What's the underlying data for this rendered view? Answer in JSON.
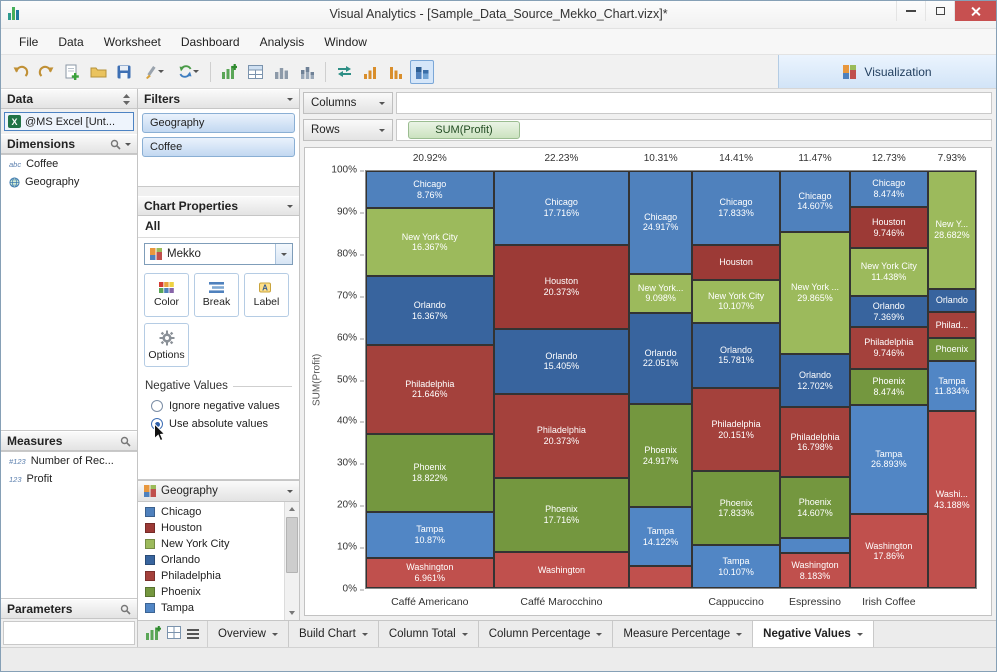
{
  "window": {
    "title": "Visual Analytics - [Sample_Data_Source_Mekko_Chart.vizx]*"
  },
  "menu": {
    "items": [
      "File",
      "Data",
      "Worksheet",
      "Dashboard",
      "Analysis",
      "Window"
    ]
  },
  "toolbar": {
    "visualization_label": "Visualization"
  },
  "data_panel": {
    "header": "Data",
    "source": "@MS Excel [Unt...",
    "dimensions": {
      "header": "Dimensions",
      "items": [
        {
          "icon": "abc-icon",
          "icon_text": "abc",
          "label": "Coffee"
        },
        {
          "icon": "globe-icon",
          "icon_text": "",
          "label": "Geography"
        }
      ]
    },
    "measures": {
      "header": "Measures",
      "items": [
        {
          "icon": "count-icon",
          "icon_text": "#123",
          "label": "Number of Rec..."
        },
        {
          "icon": "number-icon",
          "icon_text": "123",
          "label": "Profit"
        }
      ]
    },
    "parameters": {
      "header": "Parameters"
    }
  },
  "filters": {
    "header": "Filters",
    "pills": [
      "Geography",
      "Coffee"
    ]
  },
  "chart_properties": {
    "header": "Chart Properties",
    "scope": "All",
    "chart_type": "Mekko",
    "buttons": [
      {
        "label": "Color"
      },
      {
        "label": "Break"
      },
      {
        "label": "Label"
      }
    ],
    "options_label": "Options",
    "negative_values": {
      "title": "Negative Values",
      "options": [
        {
          "label": "Ignore negative values",
          "selected": false
        },
        {
          "label": "Use absolute values",
          "selected": true
        }
      ]
    }
  },
  "legend": {
    "header": "Geography",
    "items": [
      {
        "label": "Chicago",
        "color": "#4f81bd"
      },
      {
        "label": "Houston",
        "color": "#9c3a36"
      },
      {
        "label": "New York City",
        "color": "#9cba5c"
      },
      {
        "label": "Orlando",
        "color": "#38649e"
      },
      {
        "label": "Philadelphia",
        "color": "#a4413c"
      },
      {
        "label": "Phoenix",
        "color": "#74973f"
      },
      {
        "label": "Tampa",
        "color": "#5186c5"
      }
    ]
  },
  "shelves": {
    "columns_label": "Columns",
    "rows_label": "Rows",
    "rows_pill": "SUM(Profit)"
  },
  "chart_data": {
    "type": "mekko",
    "ylabel": "SUM(Profit)",
    "y_ticks": [
      "100%",
      "90%",
      "80%",
      "70%",
      "60%",
      "50%",
      "40%",
      "30%",
      "20%",
      "10%",
      "0%"
    ],
    "x_labels": [
      "Caffé Americano",
      "Caffé Marocchino",
      "Cappuccino",
      "Espressino",
      "Irish Coffee"
    ],
    "colors": {
      "Chicago": "#4f81bd",
      "Houston": "#9c3a36",
      "New York City": "#9cba5c",
      "Orlando": "#38649e",
      "Philadelphia": "#a4413c",
      "Phoenix": "#74973f",
      "Tampa": "#5186c5",
      "Washington": "#c0504d"
    },
    "columns": [
      {
        "width": 20.92,
        "width_label": "20.92%",
        "x_label": "Caffé Americano",
        "segments": [
          {
            "city": "Chicago",
            "value": 8.76,
            "name": "Chicago",
            "pct": "8.76%"
          },
          {
            "city": "New York City",
            "value": 16.367,
            "name": "New York City",
            "pct": "16.367%"
          },
          {
            "city": "Orlando",
            "value": 16.367,
            "name": "Orlando",
            "pct": "16.367%"
          },
          {
            "city": "Philadelphia",
            "value": 21.646,
            "name": "Philadelphia",
            "pct": "21.646%"
          },
          {
            "city": "Phoenix",
            "value": 18.822,
            "name": "Phoenix",
            "pct": "18.822%"
          },
          {
            "city": "Tampa",
            "value": 10.87,
            "name": "Tampa",
            "pct": "10.87%"
          },
          {
            "city": "Washington",
            "value": 6.961,
            "name": "Washington",
            "pct": "6.961%"
          }
        ]
      },
      {
        "width": 22.23,
        "width_label": "22.23%",
        "x_label": "Caffé Marocchino",
        "segments": [
          {
            "city": "Chicago",
            "value": 17.716,
            "name": "Chicago",
            "pct": "17.716%"
          },
          {
            "city": "Houston",
            "value": 20.373,
            "name": "Houston",
            "pct": "20.373%"
          },
          {
            "city": "Orlando",
            "value": 15.405,
            "name": "Orlando",
            "pct": "15.405%"
          },
          {
            "city": "Philadelphia",
            "value": 20.373,
            "name": "Philadelphia",
            "pct": "20.373%"
          },
          {
            "city": "Phoenix",
            "value": 17.716,
            "name": "Phoenix",
            "pct": "17.716%"
          },
          {
            "city": "Washington",
            "value": 8.417,
            "name": "Washington",
            "pct": ""
          }
        ]
      },
      {
        "width": 10.31,
        "width_label": "10.31%",
        "x_label": "",
        "segments": [
          {
            "city": "Chicago",
            "value": 24.917,
            "name": "Chicago",
            "pct": "24.917%"
          },
          {
            "city": "New York City",
            "value": 9.098,
            "name": "New York...",
            "pct": "9.098%"
          },
          {
            "city": "Orlando",
            "value": 22.051,
            "name": "Orlando",
            "pct": "22.051%"
          },
          {
            "city": "Phoenix",
            "value": 24.917,
            "name": "Phoenix",
            "pct": "24.917%"
          },
          {
            "city": "Tampa",
            "value": 14.122,
            "name": "Tampa",
            "pct": "14.122%"
          },
          {
            "city": "Washington",
            "value": 4.895,
            "name": "",
            "pct": ""
          }
        ]
      },
      {
        "width": 14.41,
        "width_label": "14.41%",
        "x_label": "Cappuccino",
        "segments": [
          {
            "city": "Chicago",
            "value": 17.833,
            "name": "Chicago",
            "pct": "17.833%"
          },
          {
            "city": "Houston",
            "value": 8.188,
            "name": "Houston",
            "pct": ""
          },
          {
            "city": "New York City",
            "value": 10.107,
            "name": "New York City",
            "pct": "10.107%"
          },
          {
            "city": "Orlando",
            "value": 15.781,
            "name": "Orlando",
            "pct": "15.781%"
          },
          {
            "city": "Philadelphia",
            "value": 20.151,
            "name": "Philadelphia",
            "pct": "20.151%"
          },
          {
            "city": "Phoenix",
            "value": 17.833,
            "name": "Phoenix",
            "pct": "17.833%"
          },
          {
            "city": "Tampa",
            "value": 10.107,
            "name": "Tampa",
            "pct": "10.107%"
          }
        ]
      },
      {
        "width": 11.47,
        "width_label": "11.47%",
        "x_label": "Espressino",
        "segments": [
          {
            "city": "Chicago",
            "value": 14.607,
            "name": "Chicago",
            "pct": "14.607%"
          },
          {
            "city": "New York City",
            "value": 29.865,
            "name": "New York ...",
            "pct": "29.865%"
          },
          {
            "city": "Orlando",
            "value": 12.702,
            "name": "Orlando",
            "pct": "12.702%"
          },
          {
            "city": "Philadelphia",
            "value": 16.798,
            "name": "Philadelphia",
            "pct": "16.798%"
          },
          {
            "city": "Phoenix",
            "value": 14.607,
            "name": "Phoenix",
            "pct": "14.607%"
          },
          {
            "city": "Tampa",
            "value": 3.238,
            "name": "",
            "pct": ""
          },
          {
            "city": "Washington",
            "value": 8.183,
            "name": "Washington",
            "pct": "8.183%"
          }
        ]
      },
      {
        "width": 12.73,
        "width_label": "12.73%",
        "x_label": "Irish Coffee",
        "segments": [
          {
            "city": "Chicago",
            "value": 8.474,
            "name": "Chicago",
            "pct": "8.474%"
          },
          {
            "city": "Houston",
            "value": 9.746,
            "name": "Houston",
            "pct": "9.746%"
          },
          {
            "city": "New York City",
            "value": 11.438,
            "name": "New York City",
            "pct": "11.438%"
          },
          {
            "city": "Orlando",
            "value": 7.369,
            "name": "Orlando",
            "pct": "7.369%"
          },
          {
            "city": "Philadelphia",
            "value": 9.746,
            "name": "Philadelphia",
            "pct": "9.746%"
          },
          {
            "city": "Phoenix",
            "value": 8.474,
            "name": "Phoenix",
            "pct": "8.474%"
          },
          {
            "city": "Tampa",
            "value": 26.893,
            "name": "Tampa",
            "pct": "26.893%"
          },
          {
            "city": "Washington",
            "value": 17.86,
            "name": "Washington",
            "pct": "17.86%"
          }
        ]
      },
      {
        "width": 7.93,
        "width_label": "7.93%",
        "x_label": "",
        "segments": [
          {
            "city": "New York City",
            "value": 28.682,
            "name": "New Y...",
            "pct": "28.682%"
          },
          {
            "city": "Orlando",
            "value": 5.2,
            "name": "Orlando",
            "pct": ""
          },
          {
            "city": "Philadelphia",
            "value": 5.9,
            "name": "Philad...",
            "pct": ""
          },
          {
            "city": "Phoenix",
            "value": 5.2,
            "name": "Phoenix",
            "pct": ""
          },
          {
            "city": "Tampa",
            "value": 11.834,
            "name": "Tampa",
            "pct": "11.834%"
          },
          {
            "city": "Washington",
            "value": 43.188,
            "name": "Washi...",
            "pct": "43.188%"
          }
        ]
      }
    ]
  },
  "bottom_tabs": {
    "tabs": [
      {
        "label": "Overview",
        "active": false
      },
      {
        "label": "Build Chart",
        "active": false
      },
      {
        "label": "Column Total",
        "active": false
      },
      {
        "label": "Column Percentage",
        "active": false
      },
      {
        "label": "Measure Percentage",
        "active": false
      },
      {
        "label": "Negative Values",
        "active": true
      }
    ]
  }
}
